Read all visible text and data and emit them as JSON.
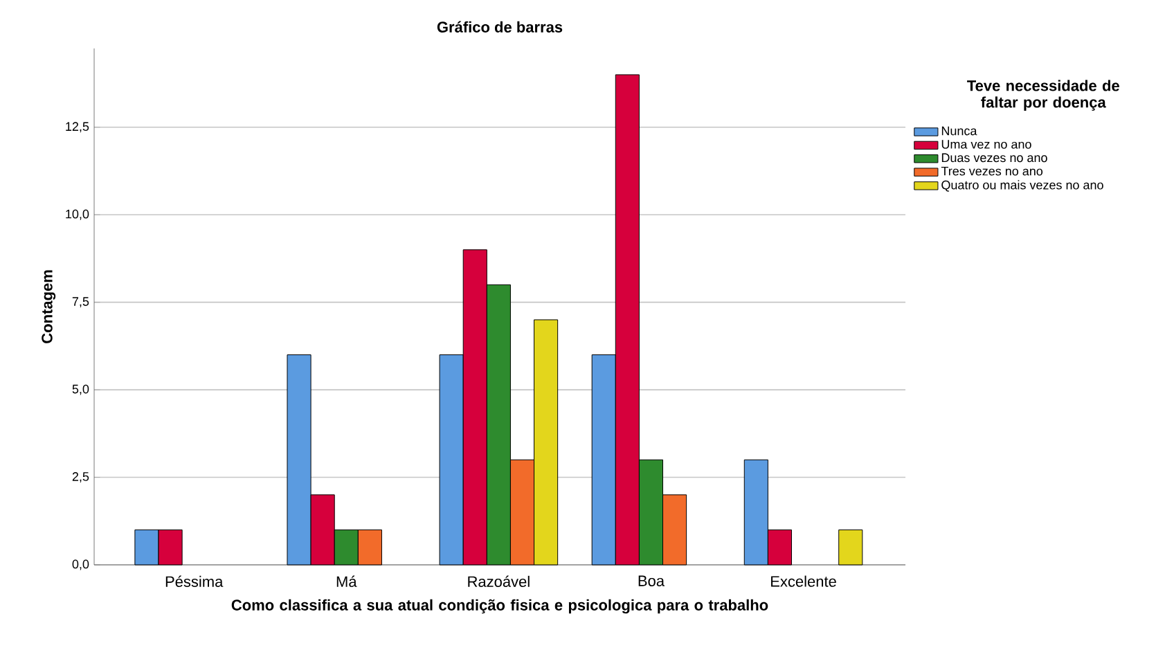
{
  "chart_data": {
    "type": "bar",
    "title": "Gráfico de barras",
    "xlabel": "Como classifica a sua atual condição fisica e psicologica para o trabalho",
    "ylabel": "Contagem",
    "legend_title": "Teve necessidade de faltar por doença",
    "categories": [
      "Péssima",
      "Má",
      "Razoável",
      "Boa",
      "Excelente"
    ],
    "series": [
      {
        "name": "Nunca",
        "color": "#5b9be0",
        "values": [
          1,
          6,
          6,
          6,
          3
        ]
      },
      {
        "name": "Uma vez no ano",
        "color": "#d6003c",
        "values": [
          1,
          2,
          9,
          14,
          1
        ]
      },
      {
        "name": "Duas vezes no ano",
        "color": "#2e8b2e",
        "values": [
          null,
          1,
          8,
          3,
          null
        ]
      },
      {
        "name": "Tres vezes no ano",
        "color": "#f26b2a",
        "values": [
          null,
          1,
          3,
          2,
          null
        ]
      },
      {
        "name": "Quatro ou mais vezes no ano",
        "color": "#e3d61c",
        "values": [
          null,
          null,
          7,
          null,
          1
        ]
      }
    ],
    "ylim": [
      0,
      14.75
    ],
    "yticks": [
      {
        "value": 0,
        "label": "0,0"
      },
      {
        "value": 2.5,
        "label": "2,5"
      },
      {
        "value": 5,
        "label": "5,0"
      },
      {
        "value": 7.5,
        "label": "7,5"
      },
      {
        "value": 10,
        "label": "10,0"
      },
      {
        "value": 12.5,
        "label": "12,5"
      }
    ],
    "grid": "y",
    "legend": "right"
  }
}
